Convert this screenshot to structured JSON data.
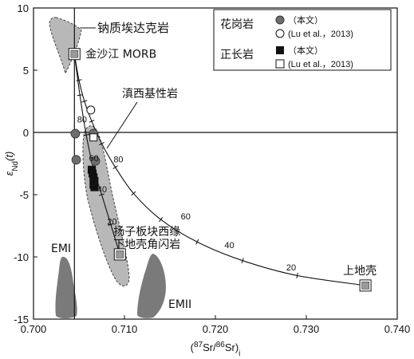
{
  "chart_data": {
    "type": "scatter",
    "xlabel_main": "(",
    "xlabel_sup": "87",
    "xlabel_mid": "Sr/",
    "xlabel_sup2": "86",
    "xlabel_end": "Sr)",
    "xlabel_sub": "i",
    "ylabel_main": "ε",
    "ylabel_sub": "Nd",
    "ylabel_end": "(t)",
    "xlim": [
      0.7,
      0.74
    ],
    "ylim": [
      -15,
      10
    ],
    "x_ticks": [
      0.7,
      0.71,
      0.72,
      0.73,
      0.74
    ],
    "x_tick_labels": [
      "0.700",
      "0.710",
      "0.720",
      "0.730",
      "0.740"
    ],
    "y_ticks": [
      10,
      5,
      0,
      -5,
      -10,
      -15
    ],
    "y_tick_labels": [
      "10",
      "5",
      "0",
      "-5",
      "-10",
      "-15"
    ],
    "reference_lines": {
      "x": 0.7045,
      "y": 0
    },
    "series": [
      {
        "name": "花岗岩（本文）",
        "marker": "filled-circle",
        "points": [
          [
            0.7046,
            -0.1
          ],
          [
            0.7066,
            -0.1
          ],
          [
            0.7047,
            -2.2
          ],
          [
            0.7068,
            -2.3
          ]
        ]
      },
      {
        "name": "花岗岩（Lu et al., 2013）",
        "marker": "open-circle",
        "points": [
          [
            0.7063,
            1.8
          ]
        ]
      },
      {
        "name": "正长岩（本文）",
        "marker": "filled-square",
        "points": [
          [
            0.7064,
            -3.0
          ],
          [
            0.7065,
            -3.3
          ],
          [
            0.7066,
            -3.6
          ],
          [
            0.7067,
            -3.9
          ],
          [
            0.7066,
            -4.2
          ],
          [
            0.7067,
            -4.4
          ]
        ]
      },
      {
        "name": "正长岩（Lu et al., 2013）",
        "marker": "open-square",
        "points": [
          [
            0.7066,
            -0.4
          ]
        ]
      }
    ],
    "endmembers": [
      {
        "label": "金沙江 MORB",
        "x": 0.7045,
        "y": 6.3,
        "label_pos": "right"
      },
      {
        "label": "扬子板块西缘\n下地壳角闪岩",
        "x": 0.7095,
        "y": -9.8,
        "label_pos": "above-right"
      },
      {
        "label": "上地壳",
        "x": 0.7365,
        "y": -12.3,
        "label_pos": "above"
      }
    ],
    "mixing_curves": [
      {
        "from": "金沙江 MORB",
        "to": "上地壳",
        "points": [
          [
            0.7045,
            6.3
          ],
          [
            0.705,
            4.2
          ],
          [
            0.7056,
            2.5
          ],
          [
            0.7064,
            0.9
          ],
          [
            0.7075,
            -0.9
          ],
          [
            0.709,
            -2.8
          ],
          [
            0.711,
            -4.9
          ],
          [
            0.714,
            -7.0
          ],
          [
            0.718,
            -8.8
          ],
          [
            0.723,
            -10.3
          ],
          [
            0.729,
            -11.5
          ],
          [
            0.7365,
            -12.3
          ]
        ],
        "tick_labels": [
          {
            "text": "80",
            "x": 0.7088,
            "y": -2.4
          },
          {
            "text": "60",
            "x": 0.7162,
            "y": -7.0
          },
          {
            "text": "40",
            "x": 0.721,
            "y": -9.3
          },
          {
            "text": "20",
            "x": 0.7278,
            "y": -11.1
          }
        ]
      },
      {
        "from": "金沙江 MORB",
        "to": "扬子板块西缘\n下地壳角闪岩",
        "points": [
          [
            0.7045,
            6.3
          ],
          [
            0.7051,
            3.0
          ],
          [
            0.7058,
            -0.2
          ],
          [
            0.7066,
            -2.9
          ],
          [
            0.7075,
            -5.0
          ],
          [
            0.7085,
            -7.4
          ],
          [
            0.7095,
            -9.8
          ]
        ],
        "tick_labels": [
          {
            "text": "80",
            "x": 0.7048,
            "y": 0.8
          },
          {
            "text": "60",
            "x": 0.7061,
            "y": -2.3
          },
          {
            "text": "40",
            "x": 0.707,
            "y": -4.8
          },
          {
            "text": "20",
            "x": 0.7081,
            "y": -7.4
          }
        ]
      }
    ],
    "fields": [
      {
        "label": "钠质埃达克岩",
        "fill": "#b8b8b8",
        "dashed": true
      },
      {
        "label": "",
        "fill": "#b8b8b8",
        "dashed": true
      },
      {
        "label": "EMI",
        "fill": "#7a7a7a",
        "dashed": false
      },
      {
        "label": "EMII",
        "fill": "#7a7a7a",
        "dashed": false
      }
    ],
    "legend": {
      "groups": [
        {
          "title": "花岗岩",
          "items": [
            {
              "marker": "filled-circle",
              "text": "（本文）"
            },
            {
              "marker": "open-circle",
              "text": "(Lu et al.，2013)"
            }
          ]
        },
        {
          "title": "正长岩",
          "items": [
            {
              "marker": "filled-square",
              "text": "（本文）"
            },
            {
              "marker": "open-square",
              "text": "(Lu et al.，2013)"
            }
          ]
        }
      ],
      "position": "top-right"
    },
    "annotations": [
      {
        "text": "滇西基性岩"
      }
    ],
    "colors": {
      "filled_marker": "#6e6e6e",
      "field_light": "#b8b8b8",
      "field_dark": "#7a7a7a",
      "endmember_fill": "#9a9a9a"
    }
  }
}
